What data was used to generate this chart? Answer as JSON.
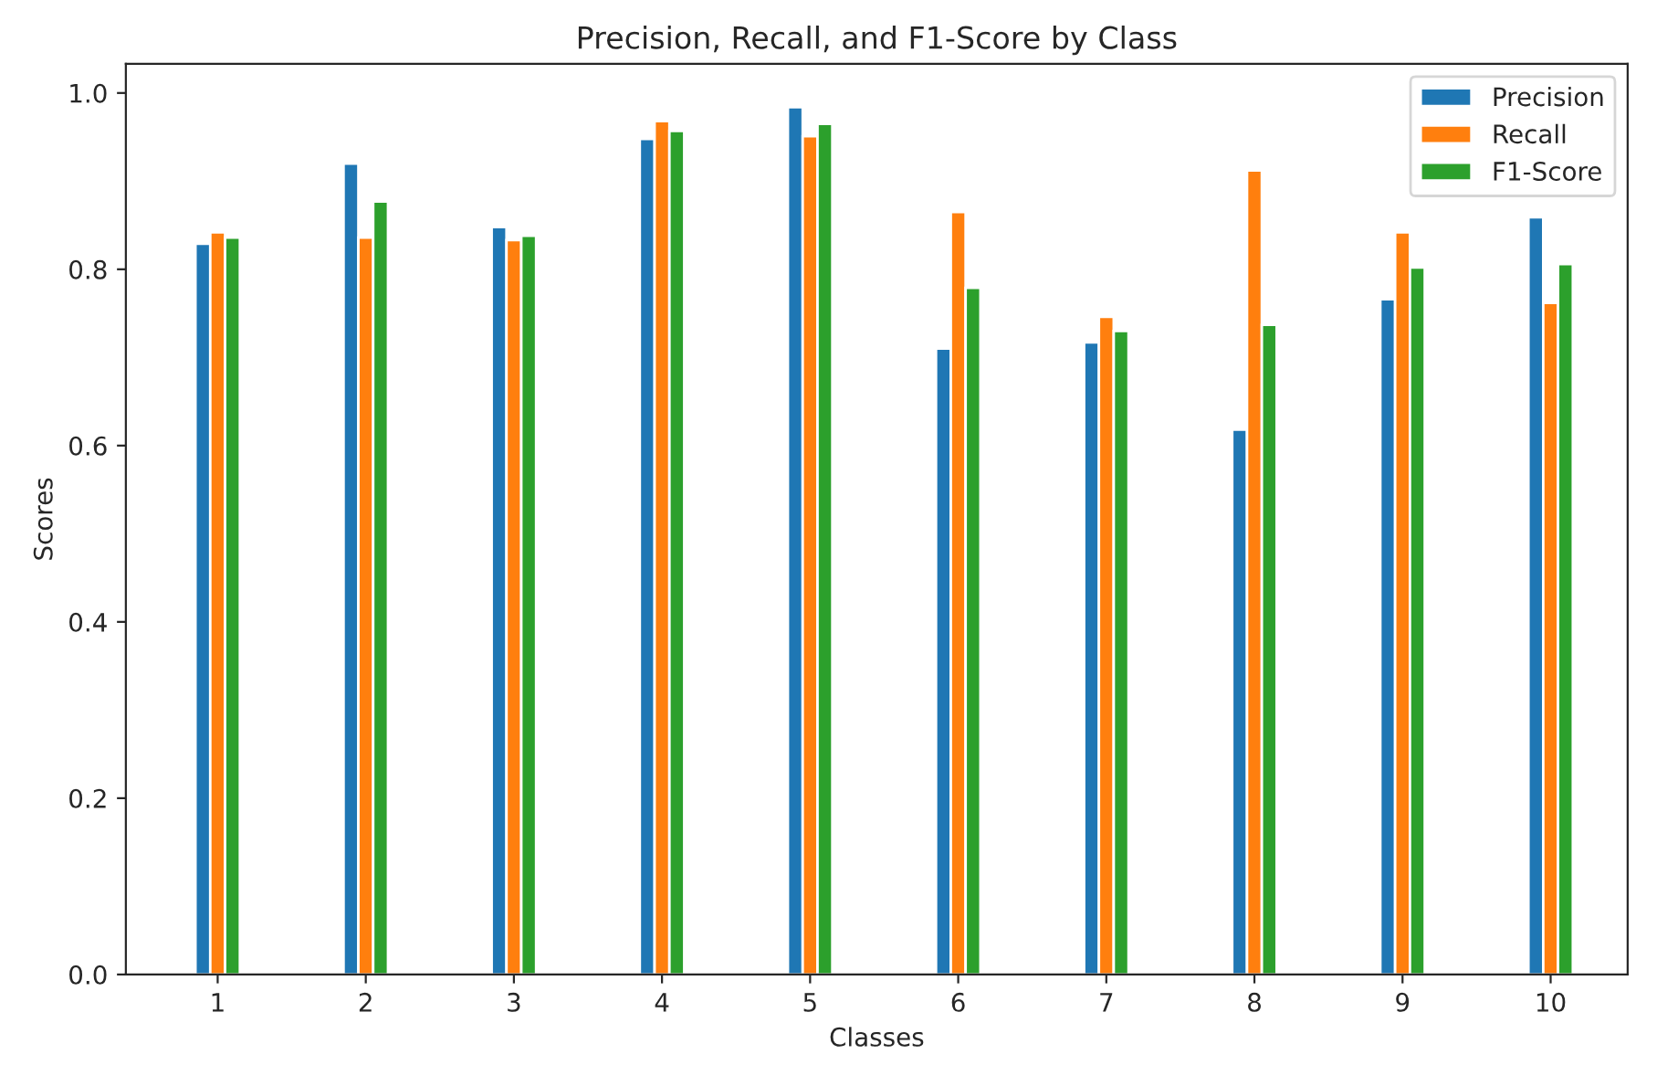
{
  "chart_data": {
    "type": "bar",
    "title": "Precision, Recall, and F1-Score by Class",
    "xlabel": "Classes",
    "ylabel": "Scores",
    "categories": [
      "1",
      "2",
      "3",
      "4",
      "5",
      "6",
      "7",
      "8",
      "9",
      "10"
    ],
    "series": [
      {
        "name": "Precision",
        "color": "#1f77b4",
        "values": [
          0.829,
          0.92,
          0.848,
          0.948,
          0.984,
          0.71,
          0.717,
          0.618,
          0.766,
          0.859
        ]
      },
      {
        "name": "Recall",
        "color": "#ff7f0e",
        "values": [
          0.842,
          0.836,
          0.833,
          0.968,
          0.951,
          0.865,
          0.746,
          0.912,
          0.842,
          0.762
        ]
      },
      {
        "name": "F1-Score",
        "color": "#2ca02c",
        "values": [
          0.836,
          0.877,
          0.838,
          0.957,
          0.965,
          0.779,
          0.73,
          0.737,
          0.802,
          0.806
        ]
      }
    ],
    "ylim": [
      0,
      1.033
    ],
    "yticks": [
      {
        "value": 0,
        "label": "0.0"
      },
      {
        "value": 0.2,
        "label": "0.2"
      },
      {
        "value": 0.4,
        "label": "0.4"
      },
      {
        "value": 0.6,
        "label": "0.6"
      },
      {
        "value": 0.8,
        "label": "0.8"
      },
      {
        "value": 1.0,
        "label": "1.0"
      }
    ],
    "grid": false,
    "legend": "top right"
  }
}
